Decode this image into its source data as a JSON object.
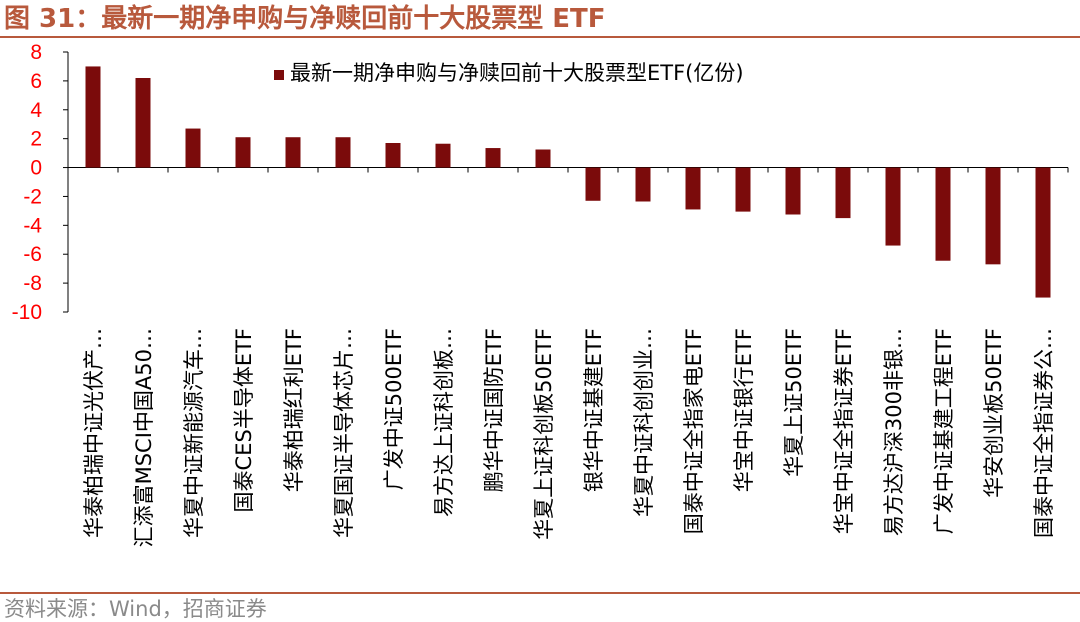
{
  "title": "图 31：最新一期净申购与净赎回前十大股票型 ETF",
  "source": "资料来源：Wind，招商证券",
  "chart_data": {
    "type": "bar",
    "legend_position": "top-right",
    "grid": false,
    "ylim": [
      -10,
      8
    ],
    "yticks": [
      "8",
      "6",
      "4",
      "2",
      "0",
      "-2",
      "-4",
      "-6",
      "-8",
      "-10"
    ],
    "bar_color": "#7b0b0b",
    "tick_label_color": "#ff0000",
    "series": [
      {
        "name": "最新一期净申购与净赎回前十大股票型ETF(亿份)",
        "values": [
          7.0,
          6.2,
          2.7,
          2.1,
          2.1,
          2.1,
          1.7,
          1.65,
          1.35,
          1.25,
          -2.3,
          -2.35,
          -2.9,
          -3.05,
          -3.25,
          -3.5,
          -5.4,
          -6.45,
          -6.7,
          -9.0
        ]
      }
    ],
    "categories": [
      "华泰柏瑞中证光伏产…",
      "汇添富MSCI中国A50…",
      "华夏中证新能源汽车…",
      "国泰CES半导体ETF",
      "华泰柏瑞红利ETF",
      "华夏国证半导体芯片…",
      "广发中证500ETF",
      "易方达上证科创板…",
      "鹏华中证国防ETF",
      "华夏上证科创板50ETF",
      "银华中证基建ETF",
      "华夏中证科创创业…",
      "国泰中证全指家电ETF",
      "华宝中证银行ETF",
      "华夏上证50ETF",
      "华宝中证全指证券ETF",
      "易方达沪深300非银…",
      "广发中证基建工程ETF",
      "华安创业板50ETF",
      "国泰中证全指证券公…"
    ]
  }
}
